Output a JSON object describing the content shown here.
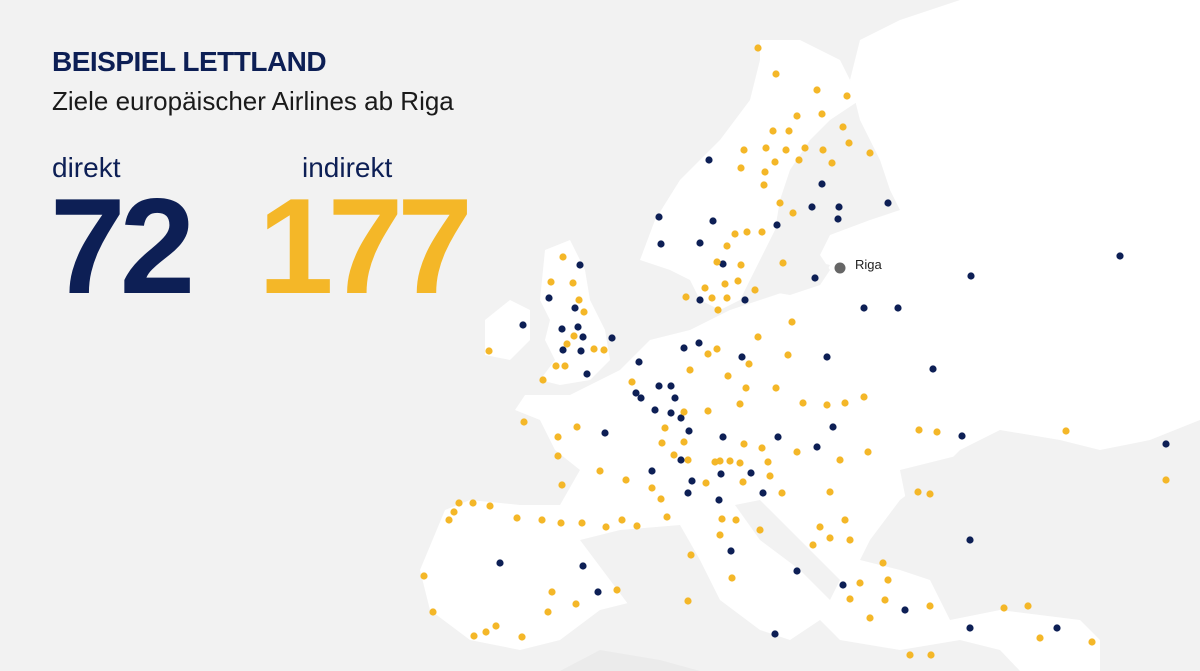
{
  "header": {
    "title": "BEISPIEL LETTLAND",
    "subtitle": "Ziele europäischer Airlines ab Riga"
  },
  "stats": [
    {
      "label": "direkt",
      "value": 72
    },
    {
      "label": "indirekt",
      "value": 177
    }
  ],
  "map": {
    "origin": "Riga"
  }
}
